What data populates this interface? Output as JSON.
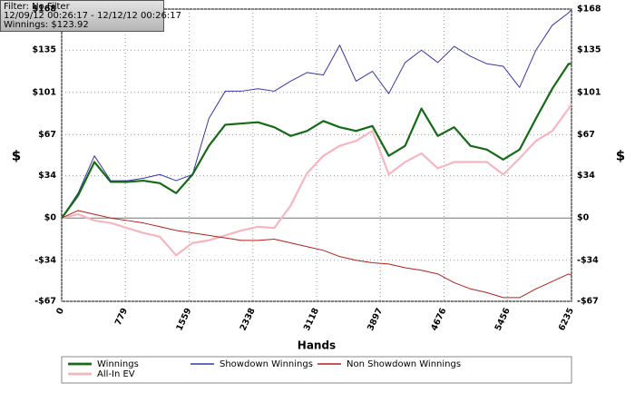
{
  "chart_data": {
    "type": "line",
    "info": [
      "Filter: No Filter",
      "12/09/12 00:26:17 - 12/12/12 00:26:17",
      "Winnings: $123.92"
    ],
    "xlabel": "Hands",
    "ylabel": "$",
    "y2label": "$",
    "x": [
      0,
      200,
      400,
      600,
      800,
      1000,
      1200,
      1400,
      1600,
      1800,
      2000,
      2200,
      2400,
      2600,
      2800,
      3000,
      3200,
      3400,
      3600,
      3800,
      4000,
      4200,
      4400,
      4600,
      4800,
      5000,
      5200,
      5400,
      5600,
      5800,
      6000,
      6200,
      6235
    ],
    "series": [
      {
        "name": "Winnings",
        "color": "#156b15",
        "values": [
          0,
          18,
          45,
          29,
          29,
          30,
          28,
          20,
          35,
          58,
          75,
          76,
          77,
          73,
          66,
          70,
          78,
          73,
          70,
          74,
          50,
          58,
          88,
          66,
          73,
          58,
          55,
          47,
          55,
          80,
          104,
          124,
          123.92
        ]
      },
      {
        "name": "Showdown Winnings",
        "color": "#3636a6",
        "values": [
          0,
          20,
          50,
          30,
          30,
          32,
          35,
          30,
          35,
          80,
          102,
          102,
          104,
          102,
          110,
          117,
          115,
          139,
          110,
          118,
          100,
          125,
          135,
          125,
          138,
          130,
          124,
          122,
          105,
          135,
          155,
          165,
          168
        ]
      },
      {
        "name": "Non Showdown Winnings",
        "color": "#b3201c",
        "values": [
          0,
          6,
          3,
          0,
          -2,
          -4,
          -7,
          -10,
          -12,
          -14,
          -16,
          -18,
          -18,
          -17,
          -20,
          -23,
          -26,
          -31,
          -34,
          -36,
          -37,
          -40,
          -42,
          -45,
          -52,
          -57,
          -60,
          -64,
          -64,
          -57,
          -51,
          -45,
          -46
        ]
      },
      {
        "name": "All-In EV",
        "color": "#f5b6c0",
        "values": [
          0,
          3,
          -2,
          -4,
          -8,
          -12,
          -15,
          -30,
          -20,
          -18,
          -14,
          -10,
          -7,
          -8,
          10,
          36,
          50,
          58,
          62,
          70,
          35,
          45,
          52,
          40,
          45,
          45,
          45,
          35,
          48,
          62,
          70,
          88,
          92
        ]
      }
    ],
    "xlim": [
      0,
      6235
    ],
    "xticks": [
      0,
      779,
      1559,
      2338,
      3118,
      3897,
      4676,
      5456,
      6235
    ],
    "ylim": [
      -67,
      168
    ],
    "yticks": [
      {
        "value": -67,
        "label": "-$67"
      },
      {
        "value": -34,
        "label": "-$34"
      },
      {
        "value": 0,
        "label": "$0"
      },
      {
        "value": 34,
        "label": "$34"
      },
      {
        "value": 67,
        "label": "$67"
      },
      {
        "value": 101,
        "label": "$101"
      },
      {
        "value": 135,
        "label": "$135"
      },
      {
        "value": 168,
        "label": "$168"
      }
    ],
    "grid": true
  }
}
